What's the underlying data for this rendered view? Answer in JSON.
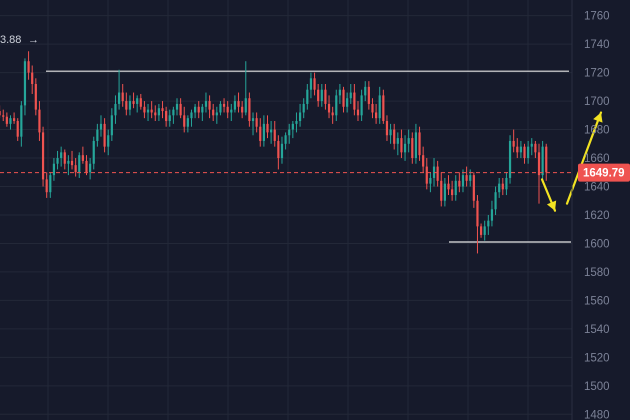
{
  "chart_data": {
    "type": "candlestick",
    "y_axis": {
      "ticks": [
        1480,
        1500,
        1520,
        1540,
        1560,
        1580,
        1600,
        1620,
        1640,
        1660,
        1680,
        1700,
        1720,
        1740,
        1760
      ],
      "range": [
        1476,
        1771
      ],
      "position": "right"
    },
    "current_price": {
      "value": 1649.79,
      "label": "1649.79"
    },
    "high_marker_label": "3.88",
    "horizontal_levels": [
      1721,
      1601
    ],
    "arrows": [
      {
        "from_price": 1645,
        "to_price": 1623,
        "color": "#f2e322"
      },
      {
        "from_price": 1628,
        "to_price": 1692,
        "color": "#f2e322"
      }
    ],
    "colors": {
      "up": "#26a69a",
      "down": "#ef5350",
      "background": "#161a2b",
      "grid": "#232838"
    },
    "candles": [
      [
        1690,
        1695,
        1685,
        1693
      ],
      [
        1693,
        1697,
        1688,
        1690
      ],
      [
        1690,
        1694,
        1686,
        1689
      ],
      [
        1689,
        1692,
        1682,
        1684
      ],
      [
        1684,
        1690,
        1680,
        1688
      ],
      [
        1688,
        1692,
        1684,
        1686
      ],
      [
        1686,
        1688,
        1672,
        1675
      ],
      [
        1675,
        1700,
        1668,
        1697
      ],
      [
        1697,
        1730,
        1690,
        1728
      ],
      [
        1728,
        1735,
        1715,
        1720
      ],
      [
        1720,
        1725,
        1705,
        1712
      ],
      [
        1712,
        1716,
        1690,
        1694
      ],
      [
        1694,
        1700,
        1672,
        1678
      ],
      [
        1678,
        1682,
        1640,
        1645
      ],
      [
        1645,
        1650,
        1632,
        1636
      ],
      [
        1636,
        1650,
        1632,
        1648
      ],
      [
        1648,
        1660,
        1644,
        1656
      ],
      [
        1656,
        1665,
        1652,
        1660
      ],
      [
        1660,
        1668,
        1654,
        1664
      ],
      [
        1664,
        1666,
        1652,
        1656
      ],
      [
        1656,
        1662,
        1648,
        1658
      ],
      [
        1658,
        1665,
        1652,
        1655
      ],
      [
        1655,
        1660,
        1647,
        1650
      ],
      [
        1650,
        1664,
        1646,
        1662
      ],
      [
        1662,
        1668,
        1656,
        1658
      ],
      [
        1658,
        1662,
        1648,
        1650
      ],
      [
        1650,
        1660,
        1645,
        1656
      ],
      [
        1656,
        1675,
        1652,
        1672
      ],
      [
        1672,
        1684,
        1668,
        1680
      ],
      [
        1680,
        1690,
        1675,
        1684
      ],
      [
        1684,
        1688,
        1664,
        1668
      ],
      [
        1668,
        1680,
        1662,
        1676
      ],
      [
        1676,
        1695,
        1672,
        1690
      ],
      [
        1690,
        1704,
        1684,
        1698
      ],
      [
        1698,
        1722,
        1694,
        1706
      ],
      [
        1706,
        1712,
        1696,
        1700
      ],
      [
        1700,
        1706,
        1690,
        1694
      ],
      [
        1694,
        1704,
        1690,
        1700
      ],
      [
        1700,
        1706,
        1695,
        1698
      ],
      [
        1698,
        1704,
        1692,
        1702
      ],
      [
        1702,
        1705,
        1694,
        1696
      ],
      [
        1696,
        1700,
        1688,
        1692
      ],
      [
        1692,
        1698,
        1686,
        1694
      ],
      [
        1694,
        1700,
        1688,
        1692
      ],
      [
        1692,
        1697,
        1686,
        1690
      ],
      [
        1690,
        1698,
        1686,
        1695
      ],
      [
        1695,
        1700,
        1688,
        1693
      ],
      [
        1693,
        1696,
        1682,
        1686
      ],
      [
        1686,
        1694,
        1682,
        1690
      ],
      [
        1690,
        1696,
        1684,
        1694
      ],
      [
        1694,
        1702,
        1690,
        1698
      ],
      [
        1698,
        1702,
        1688,
        1690
      ],
      [
        1690,
        1696,
        1678,
        1682
      ],
      [
        1682,
        1690,
        1678,
        1688
      ],
      [
        1688,
        1694,
        1682,
        1692
      ],
      [
        1692,
        1698,
        1688,
        1696
      ],
      [
        1696,
        1700,
        1688,
        1692
      ],
      [
        1692,
        1698,
        1686,
        1696
      ],
      [
        1696,
        1706,
        1692,
        1700
      ],
      [
        1700,
        1704,
        1688,
        1694
      ],
      [
        1694,
        1698,
        1686,
        1690
      ],
      [
        1690,
        1696,
        1684,
        1692
      ],
      [
        1692,
        1700,
        1690,
        1698
      ],
      [
        1698,
        1702,
        1692,
        1696
      ],
      [
        1696,
        1700,
        1688,
        1692
      ],
      [
        1692,
        1698,
        1686,
        1694
      ],
      [
        1694,
        1704,
        1692,
        1700
      ],
      [
        1700,
        1706,
        1692,
        1696
      ],
      [
        1696,
        1700,
        1688,
        1692
      ],
      [
        1692,
        1728,
        1690,
        1702
      ],
      [
        1702,
        1706,
        1682,
        1686
      ],
      [
        1686,
        1692,
        1676,
        1688
      ],
      [
        1688,
        1692,
        1678,
        1682
      ],
      [
        1682,
        1688,
        1668,
        1672
      ],
      [
        1672,
        1690,
        1668,
        1684
      ],
      [
        1684,
        1690,
        1674,
        1678
      ],
      [
        1678,
        1686,
        1670,
        1680
      ],
      [
        1680,
        1686,
        1668,
        1672
      ],
      [
        1672,
        1676,
        1652,
        1660
      ],
      [
        1660,
        1675,
        1656,
        1670
      ],
      [
        1670,
        1678,
        1666,
        1676
      ],
      [
        1676,
        1684,
        1670,
        1680
      ],
      [
        1680,
        1686,
        1674,
        1684
      ],
      [
        1684,
        1692,
        1678,
        1686
      ],
      [
        1686,
        1698,
        1682,
        1692
      ],
      [
        1692,
        1702,
        1688,
        1698
      ],
      [
        1698,
        1712,
        1694,
        1708
      ],
      [
        1708,
        1720,
        1702,
        1716
      ],
      [
        1716,
        1720,
        1704,
        1708
      ],
      [
        1708,
        1712,
        1696,
        1700
      ],
      [
        1700,
        1712,
        1696,
        1708
      ],
      [
        1708,
        1712,
        1694,
        1698
      ],
      [
        1698,
        1704,
        1688,
        1692
      ],
      [
        1692,
        1696,
        1684,
        1690
      ],
      [
        1690,
        1708,
        1686,
        1704
      ],
      [
        1704,
        1712,
        1698,
        1708
      ],
      [
        1708,
        1710,
        1692,
        1696
      ],
      [
        1696,
        1706,
        1692,
        1702
      ],
      [
        1702,
        1712,
        1698,
        1706
      ],
      [
        1706,
        1712,
        1690,
        1694
      ],
      [
        1694,
        1700,
        1686,
        1690
      ],
      [
        1690,
        1708,
        1686,
        1704
      ],
      [
        1704,
        1714,
        1700,
        1710
      ],
      [
        1710,
        1714,
        1694,
        1698
      ],
      [
        1698,
        1702,
        1688,
        1692
      ],
      [
        1692,
        1698,
        1684,
        1688
      ],
      [
        1688,
        1710,
        1684,
        1704
      ],
      [
        1704,
        1708,
        1684,
        1686
      ],
      [
        1686,
        1690,
        1672,
        1676
      ],
      [
        1676,
        1684,
        1670,
        1680
      ],
      [
        1680,
        1684,
        1666,
        1670
      ],
      [
        1670,
        1678,
        1662,
        1674
      ],
      [
        1674,
        1680,
        1660,
        1664
      ],
      [
        1664,
        1676,
        1658,
        1670
      ],
      [
        1670,
        1680,
        1664,
        1674
      ],
      [
        1674,
        1678,
        1656,
        1660
      ],
      [
        1660,
        1684,
        1656,
        1678
      ],
      [
        1678,
        1682,
        1658,
        1662
      ],
      [
        1662,
        1668,
        1650,
        1654
      ],
      [
        1654,
        1660,
        1638,
        1642
      ],
      [
        1642,
        1650,
        1636,
        1646
      ],
      [
        1646,
        1660,
        1640,
        1654
      ],
      [
        1654,
        1658,
        1640,
        1644
      ],
      [
        1644,
        1650,
        1626,
        1630
      ],
      [
        1630,
        1646,
        1626,
        1642
      ],
      [
        1642,
        1648,
        1634,
        1638
      ],
      [
        1638,
        1644,
        1630,
        1634
      ],
      [
        1634,
        1648,
        1630,
        1644
      ],
      [
        1644,
        1650,
        1636,
        1640
      ],
      [
        1640,
        1652,
        1636,
        1648
      ],
      [
        1648,
        1654,
        1640,
        1644
      ],
      [
        1644,
        1652,
        1640,
        1648
      ],
      [
        1648,
        1650,
        1625,
        1630
      ],
      [
        1630,
        1634,
        1593,
        1612
      ],
      [
        1612,
        1614,
        1604,
        1606
      ],
      [
        1606,
        1616,
        1602,
        1612
      ],
      [
        1612,
        1620,
        1606,
        1616
      ],
      [
        1616,
        1630,
        1612,
        1624
      ],
      [
        1624,
        1640,
        1620,
        1636
      ],
      [
        1636,
        1646,
        1632,
        1642
      ],
      [
        1642,
        1646,
        1634,
        1638
      ],
      [
        1638,
        1650,
        1634,
        1646
      ],
      [
        1646,
        1676,
        1642,
        1672
      ],
      [
        1672,
        1680,
        1664,
        1668
      ],
      [
        1668,
        1674,
        1660,
        1664
      ],
      [
        1664,
        1672,
        1660,
        1668
      ],
      [
        1668,
        1670,
        1656,
        1660
      ],
      [
        1660,
        1672,
        1656,
        1668
      ],
      [
        1668,
        1674,
        1662,
        1670
      ],
      [
        1670,
        1672,
        1660,
        1664
      ],
      [
        1664,
        1670,
        1628,
        1648
      ],
      [
        1648,
        1672,
        1644,
        1668
      ],
      [
        1668,
        1670,
        1644,
        1650
      ]
    ]
  }
}
